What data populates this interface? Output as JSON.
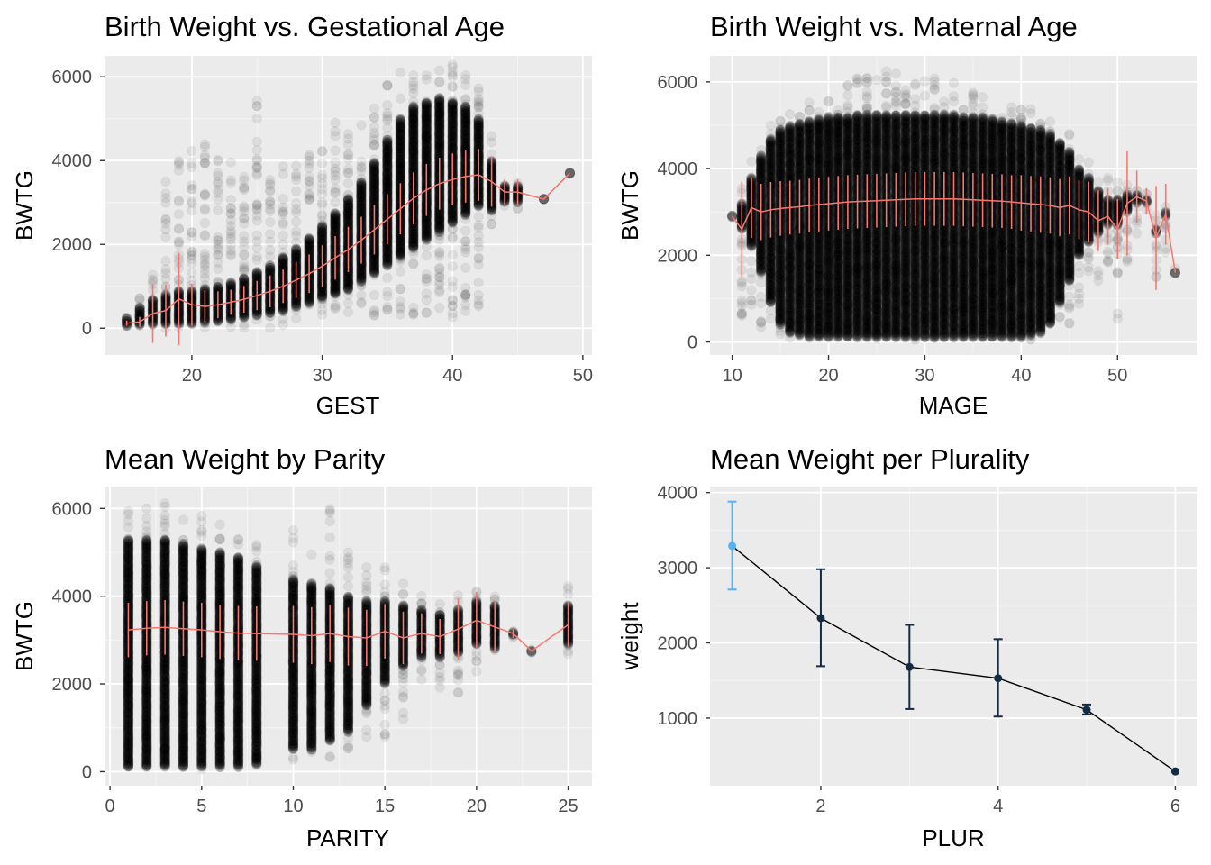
{
  "colors": {
    "panel_bg": "#EBEBEB",
    "grid_major": "#FFFFFF",
    "points": "#000000",
    "mean_line": "#F8766D",
    "plur_line": "#000000",
    "plur_dark_point": "#132B43",
    "plur_light_point": "#56B1F7"
  },
  "chart_data": [
    {
      "type": "scatter",
      "title": "Birth Weight vs. Gestational Age",
      "xlabel": "GEST",
      "ylabel": "BWTG",
      "xlim": [
        13.3,
        50.7
      ],
      "ylim": [
        -640,
        6500
      ],
      "xticks": [
        20,
        30,
        40,
        50
      ],
      "yticks": [
        0,
        2000,
        4000,
        6000
      ],
      "grid": true,
      "mean_series": {
        "x": [
          15,
          16,
          17,
          18,
          19,
          20,
          21,
          22,
          23,
          24,
          25,
          26,
          27,
          28,
          29,
          30,
          31,
          32,
          33,
          34,
          35,
          36,
          37,
          38,
          39,
          40,
          41,
          42,
          43,
          44,
          45,
          47,
          49
        ],
        "mean": [
          120,
          150,
          350,
          420,
          700,
          560,
          520,
          560,
          620,
          690,
          780,
          880,
          1000,
          1150,
          1300,
          1480,
          1680,
          1880,
          2100,
          2350,
          2600,
          2850,
          3100,
          3300,
          3450,
          3550,
          3620,
          3660,
          3500,
          3250,
          3250,
          3080,
          3700
        ],
        "sd": [
          60,
          120,
          700,
          620,
          1100,
          500,
          380,
          320,
          300,
          320,
          350,
          380,
          400,
          430,
          460,
          500,
          520,
          540,
          560,
          590,
          600,
          610,
          620,
          620,
          620,
          620,
          620,
          620,
          600,
          300,
          300,
          0,
          0
        ]
      },
      "point_clouds": [
        {
          "x": [
            15,
            16,
            17,
            18,
            19,
            20,
            21,
            22,
            23,
            24,
            25,
            26,
            27,
            28,
            29,
            30,
            31,
            32,
            33,
            34,
            35,
            36,
            37,
            38,
            39,
            40,
            41,
            42,
            43,
            44,
            45,
            47,
            49
          ],
          "dense_low": [
            50,
            60,
            80,
            80,
            90,
            100,
            120,
            150,
            200,
            250,
            300,
            350,
            400,
            500,
            600,
            700,
            800,
            900,
            1100,
            1300,
            1500,
            1700,
            1900,
            2100,
            2300,
            2500,
            2700,
            2900,
            2800,
            3000,
            3000,
            3080,
            3700
          ],
          "dense_high": [
            250,
            500,
            700,
            800,
            900,
            900,
            950,
            1000,
            1100,
            1200,
            1350,
            1500,
            1700,
            1900,
            2150,
            2450,
            2750,
            3100,
            3500,
            3950,
            4500,
            5000,
            5300,
            5400,
            5500,
            5400,
            5300,
            5000,
            4000,
            3400,
            3400,
            3080,
            3700
          ],
          "sparse_low": [
            0,
            0,
            0,
            0,
            0,
            0,
            0,
            0,
            0,
            0,
            0,
            0,
            50,
            100,
            150,
            200,
            250,
            300,
            350,
            300,
            300,
            300,
            300,
            250,
            250,
            250,
            250,
            500,
            2400,
            2800,
            2800,
            3080,
            3700
          ],
          "sparse_high": [
            300,
            900,
            1300,
            3500,
            4000,
            4300,
            4400,
            4200,
            4000,
            4300,
            5500,
            3800,
            3900,
            4100,
            4200,
            4400,
            5300,
            4800,
            5000,
            5500,
            5900,
            6100,
            6200,
            6300,
            6300,
            6300,
            6200,
            5900,
            4600,
            3600,
            3600,
            3080,
            3700
          ]
        }
      ]
    },
    {
      "type": "scatter",
      "title": "Birth Weight vs. Maternal Age",
      "xlabel": "MAGE",
      "ylabel": "BWTG",
      "xlim": [
        7.7,
        58.3
      ],
      "ylim": [
        -300,
        6600
      ],
      "xticks": [
        10,
        20,
        30,
        40,
        50
      ],
      "yticks": [
        0,
        2000,
        4000,
        6000
      ],
      "grid": true,
      "mean_series": {
        "x": [
          10,
          11,
          12,
          13,
          14,
          15,
          16,
          17,
          18,
          19,
          20,
          21,
          22,
          23,
          24,
          25,
          26,
          27,
          28,
          29,
          30,
          31,
          32,
          33,
          34,
          35,
          36,
          37,
          38,
          39,
          40,
          41,
          42,
          43,
          44,
          45,
          46,
          47,
          48,
          49,
          50,
          51,
          52,
          53,
          54,
          55,
          56
        ],
        "mean": [
          2900,
          2600,
          3100,
          3000,
          3050,
          3080,
          3100,
          3120,
          3150,
          3170,
          3190,
          3210,
          3230,
          3240,
          3250,
          3260,
          3270,
          3280,
          3290,
          3300,
          3300,
          3300,
          3300,
          3300,
          3290,
          3280,
          3270,
          3260,
          3250,
          3230,
          3210,
          3190,
          3170,
          3150,
          3100,
          3150,
          3050,
          3000,
          2800,
          2900,
          2600,
          3200,
          3350,
          3250,
          2400,
          2950,
          1600
        ],
        "sd": [
          0,
          1100,
          700,
          650,
          640,
          630,
          620,
          620,
          620,
          620,
          620,
          620,
          620,
          620,
          620,
          620,
          620,
          620,
          620,
          620,
          620,
          620,
          620,
          620,
          620,
          620,
          620,
          620,
          620,
          620,
          640,
          640,
          650,
          650,
          660,
          670,
          680,
          700,
          700,
          650,
          700,
          1200,
          600,
          300,
          1200,
          700,
          0
        ]
      },
      "point_clouds": [
        {
          "x": [
            10,
            11,
            12,
            13,
            14,
            15,
            16,
            17,
            18,
            19,
            20,
            21,
            22,
            23,
            24,
            25,
            26,
            27,
            28,
            29,
            30,
            31,
            32,
            33,
            34,
            35,
            36,
            37,
            38,
            39,
            40,
            41,
            42,
            43,
            44,
            45,
            46,
            47,
            48,
            49,
            50,
            51,
            52,
            53,
            54,
            55,
            56
          ],
          "dense_low": [
            2900,
            2600,
            2200,
            1600,
            900,
            400,
            200,
            150,
            100,
            100,
            100,
            100,
            100,
            100,
            100,
            100,
            100,
            100,
            100,
            100,
            100,
            100,
            100,
            100,
            100,
            100,
            100,
            100,
            100,
            100,
            100,
            150,
            200,
            400,
            900,
            1400,
            2000,
            2300,
            2500,
            2700,
            2700,
            3000,
            3200,
            3200,
            2500,
            2900,
            1600
          ],
          "dense_high": [
            2900,
            3200,
            3800,
            4300,
            4700,
            4900,
            5000,
            5050,
            5100,
            5150,
            5200,
            5200,
            5200,
            5250,
            5250,
            5250,
            5250,
            5250,
            5250,
            5250,
            5250,
            5250,
            5250,
            5250,
            5200,
            5200,
            5200,
            5150,
            5100,
            5050,
            5000,
            4950,
            4900,
            4800,
            4600,
            4400,
            4000,
            3800,
            3500,
            3300,
            3300,
            3400,
            3400,
            3300,
            2600,
            3000,
            1600
          ],
          "sparse_low": [
            2900,
            500,
            600,
            300,
            200,
            100,
            50,
            50,
            50,
            50,
            50,
            50,
            50,
            50,
            50,
            50,
            50,
            50,
            50,
            50,
            50,
            50,
            50,
            50,
            50,
            50,
            50,
            50,
            50,
            50,
            50,
            50,
            50,
            100,
            200,
            300,
            800,
            1200,
            1400,
            1500,
            500,
            1800,
            2500,
            3000,
            1300,
            2000,
            1500
          ],
          "sparse_high": [
            2900,
            3600,
            4200,
            4700,
            5000,
            5300,
            5400,
            5500,
            5600,
            5800,
            5900,
            6000,
            6000,
            6100,
            6100,
            6200,
            6300,
            6200,
            6100,
            6000,
            6200,
            6100,
            6000,
            6000,
            5900,
            5800,
            5800,
            5700,
            5600,
            5600,
            5500,
            5400,
            5300,
            5100,
            5000,
            4900,
            4500,
            4300,
            4000,
            3800,
            3700,
            3900,
            3800,
            3500,
            3000,
            3400,
            1700
          ]
        }
      ]
    },
    {
      "type": "scatter",
      "title": "Mean Weight by Parity",
      "xlabel": "PARITY",
      "ylabel": "BWTG",
      "xlim": [
        -0.3,
        26.3
      ],
      "ylim": [
        -320,
        6500
      ],
      "xticks": [
        0,
        5,
        10,
        15,
        20,
        25
      ],
      "yticks": [
        0,
        2000,
        4000,
        6000
      ],
      "grid": true,
      "mean_series": {
        "x": [
          1,
          2,
          3,
          4,
          5,
          6,
          7,
          8,
          10,
          11,
          12,
          13,
          14,
          15,
          16,
          17,
          18,
          19,
          20,
          21,
          22,
          23,
          25
        ],
        "mean": [
          3230,
          3270,
          3290,
          3260,
          3230,
          3190,
          3160,
          3150,
          3130,
          3100,
          3150,
          3080,
          3050,
          3200,
          3050,
          3150,
          3080,
          3250,
          3450,
          3300,
          3150,
          2750,
          3350
        ],
        "sd": [
          620,
          620,
          620,
          620,
          620,
          620,
          620,
          620,
          650,
          650,
          650,
          660,
          640,
          620,
          600,
          460,
          400,
          700,
          650,
          600,
          100,
          0,
          500
        ]
      },
      "point_clouds": [
        {
          "x": [
            1,
            2,
            3,
            4,
            5,
            6,
            7,
            8,
            10,
            11,
            12,
            13,
            14,
            15,
            16,
            17,
            18,
            19,
            20,
            21,
            22,
            23,
            25
          ],
          "dense_low": [
            100,
            100,
            100,
            100,
            100,
            100,
            100,
            150,
            500,
            500,
            700,
            900,
            1500,
            2000,
            2400,
            2600,
            2600,
            2700,
            2900,
            2800,
            3100,
            2750,
            2900
          ],
          "dense_high": [
            5300,
            5300,
            5300,
            5200,
            5100,
            5000,
            4900,
            4700,
            4400,
            4300,
            4200,
            4000,
            3900,
            3900,
            3800,
            3700,
            3600,
            3700,
            3900,
            3800,
            3200,
            2750,
            3800
          ],
          "sparse_low": [
            50,
            50,
            50,
            50,
            50,
            50,
            100,
            100,
            100,
            200,
            300,
            400,
            600,
            700,
            1200,
            2000,
            1800,
            1700,
            2200,
            2300,
            3000,
            2700,
            2600
          ],
          "sparse_high": [
            6300,
            6100,
            6300,
            5800,
            6000,
            5800,
            5600,
            5400,
            5500,
            5300,
            6200,
            5000,
            4700,
            4700,
            4400,
            4200,
            4000,
            4300,
            4400,
            4000,
            3300,
            2800,
            4300
          ]
        }
      ]
    },
    {
      "type": "line",
      "title": "Mean Weight per Plurality",
      "xlabel": "PLUR",
      "ylabel": "weight",
      "xlim": [
        0.75,
        6.25
      ],
      "ylim": [
        100,
        4080
      ],
      "xticks": [
        2,
        4,
        6
      ],
      "yticks": [
        1000,
        2000,
        3000,
        4000
      ],
      "grid": true,
      "x": [
        1,
        2,
        3,
        4,
        5,
        6
      ],
      "mean": [
        3290,
        2330,
        1680,
        1530,
        1110,
        290
      ],
      "ymin": [
        2710,
        1690,
        1120,
        1020,
        1050,
        290
      ],
      "ymax": [
        3880,
        2980,
        2240,
        2050,
        1180,
        290
      ]
    }
  ]
}
